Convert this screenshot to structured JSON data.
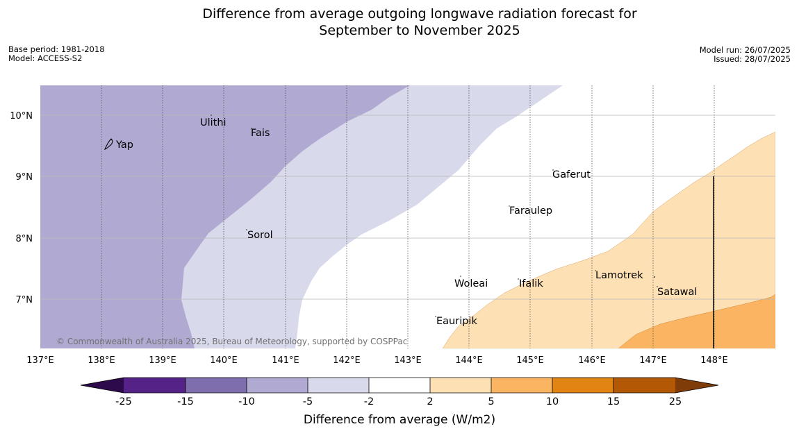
{
  "title": {
    "line1": "Difference from average outgoing longwave radiation forecast for",
    "line2": "September to November 2025"
  },
  "meta_left": {
    "base_period": "Base period: 1981-2018",
    "model": "Model: ACCESS-S2"
  },
  "meta_right": {
    "model_run": "Model run: 26/07/2025",
    "issued": "Issued: 28/07/2025"
  },
  "map": {
    "lon_ticks": [
      "137°E",
      "138°E",
      "139°E",
      "140°E",
      "141°E",
      "142°E",
      "143°E",
      "144°E",
      "145°E",
      "146°E",
      "147°E",
      "148°E"
    ],
    "lat_ticks": [
      "10°N",
      "9°N",
      "8°N",
      "7°N"
    ],
    "copyright": "© Commonwealth of Australia 2025, Bureau of Meteorology, supported by COSPPac",
    "places": [
      {
        "name": "Yap"
      },
      {
        "name": "Ulithi"
      },
      {
        "name": "Fais"
      },
      {
        "name": "Gaferut"
      },
      {
        "name": "Faraulep"
      },
      {
        "name": "Sorol"
      },
      {
        "name": "Lamotrek"
      },
      {
        "name": "Woleai"
      },
      {
        "name": "Ifalik"
      },
      {
        "name": "Satawal"
      },
      {
        "name": "Eauripik"
      }
    ],
    "fill_colors": {
      "neg_10_to_5": "#b0aad2",
      "neg_5_to_2": "#d8d9eb",
      "pos_2_to_5": "#fde0b4",
      "pos_5_to_10": "#fbb562"
    }
  },
  "colorbar": {
    "labels": [
      "-25",
      "-15",
      "-10",
      "-5",
      "-2",
      "2",
      "5",
      "10",
      "15",
      "25"
    ],
    "colors": [
      "#2c0a4b",
      "#552287",
      "#7e6ead",
      "#b0aad2",
      "#d8d9eb",
      "#ffffff",
      "#fde0b4",
      "#fbb562",
      "#e28414",
      "#b35906",
      "#7f3b08"
    ],
    "title": "Difference from average (W/m2)"
  }
}
